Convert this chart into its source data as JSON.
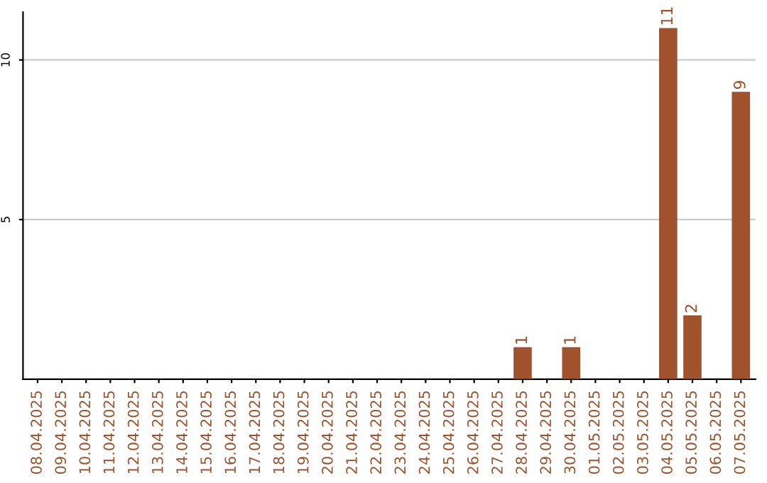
{
  "chart_data": {
    "type": "bar",
    "categories": [
      "08.04.2025",
      "09.04.2025",
      "10.04.2025",
      "11.04.2025",
      "12.04.2025",
      "13.04.2025",
      "14.04.2025",
      "15.04.2025",
      "16.04.2025",
      "17.04.2025",
      "18.04.2025",
      "19.04.2025",
      "20.04.2025",
      "21.04.2025",
      "22.04.2025",
      "23.04.2025",
      "24.04.2025",
      "25.04.2025",
      "26.04.2025",
      "27.04.2025",
      "28.04.2025",
      "29.04.2025",
      "30.04.2025",
      "01.05.2025",
      "02.05.2025",
      "03.05.2025",
      "04.05.2025",
      "05.05.2025",
      "06.05.2025",
      "07.05.2025"
    ],
    "values": [
      0,
      0,
      0,
      0,
      0,
      0,
      0,
      0,
      0,
      0,
      0,
      0,
      0,
      0,
      0,
      0,
      0,
      0,
      0,
      0,
      1,
      0,
      1,
      0,
      0,
      0,
      11,
      2,
      0,
      9
    ],
    "value_labels": [
      null,
      null,
      null,
      null,
      null,
      null,
      null,
      null,
      null,
      null,
      null,
      null,
      null,
      null,
      null,
      null,
      null,
      null,
      null,
      null,
      "1",
      null,
      "1",
      null,
      null,
      null,
      "11",
      "2",
      null,
      "9"
    ],
    "color": "#a0522d",
    "ylim": [
      0,
      11.5
    ],
    "yticks": [
      5,
      10
    ],
    "grid": "y"
  }
}
